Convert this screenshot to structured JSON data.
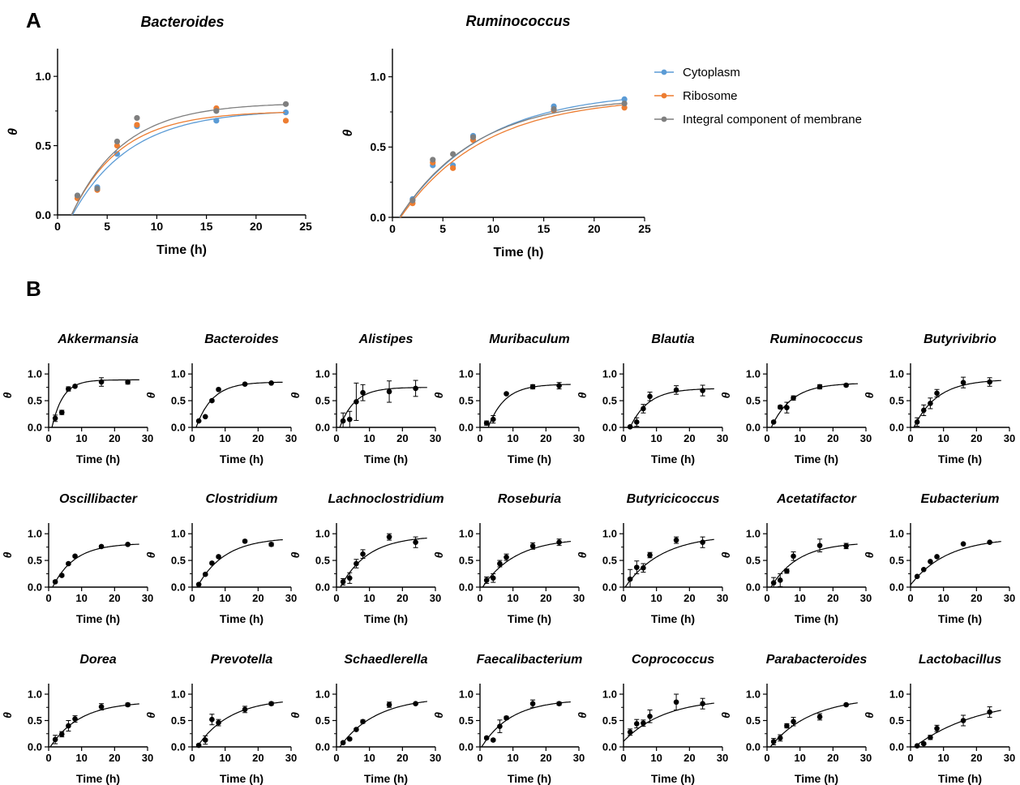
{
  "panel_labels": {
    "a": "A",
    "b": "B"
  },
  "colors": {
    "cytoplasm": "#5b9bd5",
    "ribosome": "#ed7d31",
    "membrane": "#7f7f7f",
    "black": "#000000"
  },
  "chart_data": [
    {
      "type": "scatter",
      "panel": "A",
      "title": "Bacteroides",
      "xlabel": "Time (h)",
      "ylabel": "θ",
      "xlim": [
        0,
        25
      ],
      "ylim": [
        0,
        1.2
      ],
      "xticks": [
        0,
        5,
        10,
        15,
        20,
        25
      ],
      "yticks": [
        0.0,
        0.5,
        1.0
      ],
      "fit_lines": true,
      "series": [
        {
          "name": "Cytoplasm",
          "color": "#5b9bd5",
          "x": [
            2,
            4,
            6,
            8,
            16,
            23
          ],
          "y": [
            0.14,
            0.2,
            0.44,
            0.64,
            0.68,
            0.74
          ],
          "fit": {
            "plateau": 0.76,
            "k": 0.17,
            "t0": 1.5
          }
        },
        {
          "name": "Ribosome",
          "color": "#ed7d31",
          "x": [
            2,
            4,
            6,
            8,
            16,
            23
          ],
          "y": [
            0.12,
            0.18,
            0.5,
            0.65,
            0.77,
            0.68
          ],
          "fit": {
            "plateau": 0.75,
            "k": 0.2,
            "t0": 1.4
          }
        },
        {
          "name": "Integral component of membrane",
          "color": "#7f7f7f",
          "x": [
            2,
            4,
            6,
            8,
            16,
            23
          ],
          "y": [
            0.14,
            0.19,
            0.53,
            0.7,
            0.75,
            0.8
          ],
          "fit": {
            "plateau": 0.81,
            "k": 0.19,
            "t0": 1.4
          }
        }
      ]
    },
    {
      "type": "scatter",
      "panel": "A",
      "title": "Ruminococcus",
      "xlabel": "Time (h)",
      "ylabel": "θ",
      "xlim": [
        0,
        25
      ],
      "ylim": [
        0,
        1.2
      ],
      "xticks": [
        0,
        5,
        10,
        15,
        20,
        25
      ],
      "yticks": [
        0.0,
        0.5,
        1.0
      ],
      "fit_lines": true,
      "legend_position": "right",
      "series": [
        {
          "name": "Cytoplasm",
          "color": "#5b9bd5",
          "x": [
            2,
            4,
            6,
            8,
            16,
            23
          ],
          "y": [
            0.13,
            0.37,
            0.37,
            0.58,
            0.79,
            0.84
          ],
          "fit": {
            "plateau": 0.9,
            "k": 0.12,
            "t0": 0.7
          }
        },
        {
          "name": "Ribosome",
          "color": "#ed7d31",
          "x": [
            2,
            4,
            6,
            8,
            16,
            23
          ],
          "y": [
            0.1,
            0.39,
            0.35,
            0.55,
            0.76,
            0.78
          ],
          "fit": {
            "plateau": 0.86,
            "k": 0.12,
            "t0": 0.8
          }
        },
        {
          "name": "Integral component of membrane",
          "color": "#7f7f7f",
          "x": [
            2,
            4,
            6,
            8,
            16,
            23
          ],
          "y": [
            0.12,
            0.41,
            0.45,
            0.57,
            0.77,
            0.81
          ],
          "fit": {
            "plateau": 0.86,
            "k": 0.13,
            "t0": 0.7
          }
        }
      ]
    },
    {
      "type": "scatter",
      "panel": "B",
      "title": "Akkermansia",
      "xlabel": "Time (h)",
      "ylabel": "θ",
      "xlim": [
        0,
        30
      ],
      "ylim": [
        0,
        1.2
      ],
      "xticks": [
        0,
        10,
        20,
        30
      ],
      "yticks": [
        0.0,
        0.5,
        1.0
      ],
      "x": [
        2,
        4,
        6,
        8,
        16,
        24
      ],
      "y": [
        0.17,
        0.28,
        0.72,
        0.77,
        0.85,
        0.85
      ],
      "error": [
        0.06,
        0.04,
        0.04,
        0.02,
        0.08,
        0.04
      ],
      "fit": {
        "plateau": 0.89,
        "k": 0.3,
        "t0": 1.0
      }
    },
    {
      "type": "scatter",
      "panel": "B",
      "title": "Bacteroides",
      "xlabel": "Time (h)",
      "ylabel": "θ",
      "xlim": [
        0,
        30
      ],
      "ylim": [
        0,
        1.2
      ],
      "xticks": [
        0,
        10,
        20,
        30
      ],
      "yticks": [
        0.0,
        0.5,
        1.0
      ],
      "x": [
        2,
        4,
        6,
        8,
        16,
        24
      ],
      "y": [
        0.12,
        0.2,
        0.5,
        0.71,
        0.81,
        0.83
      ],
      "error": [
        0.01,
        0.01,
        0.02,
        0.02,
        0.02,
        0.01
      ],
      "fit": {
        "plateau": 0.85,
        "k": 0.2,
        "t0": 1.2
      }
    },
    {
      "type": "scatter",
      "panel": "B",
      "title": "Alistipes",
      "xlabel": "Time (h)",
      "ylabel": "θ",
      "xlim": [
        0,
        30
      ],
      "ylim": [
        0,
        1.2
      ],
      "xticks": [
        0,
        10,
        20,
        30
      ],
      "yticks": [
        0.0,
        0.5,
        1.0
      ],
      "x": [
        2,
        4,
        6,
        8,
        16,
        24
      ],
      "y": [
        0.12,
        0.15,
        0.48,
        0.65,
        0.67,
        0.73
      ],
      "error": [
        0.15,
        0.15,
        0.35,
        0.15,
        0.2,
        0.15
      ],
      "fit": {
        "plateau": 0.75,
        "k": 0.22,
        "t0": 1.0
      }
    },
    {
      "type": "scatter",
      "panel": "B",
      "title": "Muribaculum",
      "xlabel": "Time (h)",
      "ylabel": "θ",
      "xlim": [
        0,
        30
      ],
      "ylim": [
        0,
        1.2
      ],
      "xticks": [
        0,
        10,
        20,
        30
      ],
      "yticks": [
        0.0,
        0.5,
        1.0
      ],
      "x": [
        2,
        4,
        8,
        16,
        24
      ],
      "y": [
        0.08,
        0.15,
        0.63,
        0.76,
        0.78
      ],
      "error": [
        0.04,
        0.07,
        0.02,
        0.04,
        0.06
      ],
      "fit": {
        "plateau": 0.81,
        "k": 0.2,
        "t0": 2.5
      }
    },
    {
      "type": "scatter",
      "panel": "B",
      "title": "Blautia",
      "xlabel": "Time (h)",
      "ylabel": "θ",
      "xlim": [
        0,
        30
      ],
      "ylim": [
        0,
        1.2
      ],
      "xticks": [
        0,
        10,
        20,
        30
      ],
      "yticks": [
        0.0,
        0.5,
        1.0
      ],
      "x": [
        2,
        4,
        6,
        8,
        16,
        24
      ],
      "y": [
        0.01,
        0.1,
        0.35,
        0.58,
        0.7,
        0.69
      ],
      "error": [
        0.01,
        0.08,
        0.08,
        0.08,
        0.08,
        0.1
      ],
      "fit": {
        "plateau": 0.73,
        "k": 0.18,
        "t0": 2.0
      }
    },
    {
      "type": "scatter",
      "panel": "B",
      "title": "Ruminococcus",
      "xlabel": "Time (h)",
      "ylabel": "θ",
      "xlim": [
        0,
        30
      ],
      "ylim": [
        0,
        1.2
      ],
      "xticks": [
        0,
        10,
        20,
        30
      ],
      "yticks": [
        0.0,
        0.5,
        1.0
      ],
      "x": [
        2,
        4,
        6,
        8,
        16,
        24
      ],
      "y": [
        0.1,
        0.38,
        0.37,
        0.55,
        0.76,
        0.79
      ],
      "error": [
        0.02,
        0.03,
        0.1,
        0.04,
        0.04,
        0.02
      ],
      "fit": {
        "plateau": 0.83,
        "k": 0.16,
        "t0": 1.3
      }
    },
    {
      "type": "scatter",
      "panel": "B",
      "title": "Butyrivibrio",
      "xlabel": "Time (h)",
      "ylabel": "θ",
      "xlim": [
        0,
        30
      ],
      "ylim": [
        0,
        1.2
      ],
      "xticks": [
        0,
        10,
        20,
        30
      ],
      "yticks": [
        0.0,
        0.5,
        1.0
      ],
      "x": [
        2,
        4,
        6,
        8,
        16,
        24
      ],
      "y": [
        0.1,
        0.32,
        0.45,
        0.64,
        0.84,
        0.85
      ],
      "error": [
        0.08,
        0.1,
        0.1,
        0.07,
        0.1,
        0.08
      ],
      "fit": {
        "plateau": 0.9,
        "k": 0.14,
        "t0": 1.0
      }
    },
    {
      "type": "scatter",
      "panel": "B",
      "title": "Oscillibacter",
      "xlabel": "Time (h)",
      "ylabel": "θ",
      "xlim": [
        0,
        30
      ],
      "ylim": [
        0,
        1.2
      ],
      "xticks": [
        0,
        10,
        20,
        30
      ],
      "yticks": [
        0.0,
        0.5,
        1.0
      ],
      "x": [
        2,
        4,
        6,
        8,
        16,
        24
      ],
      "y": [
        0.1,
        0.22,
        0.44,
        0.58,
        0.76,
        0.8
      ],
      "error": [
        0.02,
        0.02,
        0.02,
        0.02,
        0.02,
        0.02
      ],
      "fit": {
        "plateau": 0.82,
        "k": 0.15,
        "t0": 1.2
      }
    },
    {
      "type": "scatter",
      "panel": "B",
      "title": "Clostridium",
      "xlabel": "Time (h)",
      "ylabel": "θ",
      "xlim": [
        0,
        30
      ],
      "ylim": [
        0,
        1.2
      ],
      "xticks": [
        0,
        10,
        20,
        30
      ],
      "yticks": [
        0.0,
        0.5,
        1.0
      ],
      "x": [
        2,
        4,
        6,
        8,
        16,
        24
      ],
      "y": [
        0.05,
        0.24,
        0.45,
        0.57,
        0.86,
        0.8
      ],
      "error": [
        0.01,
        0.02,
        0.02,
        0.02,
        0.02,
        0.03
      ],
      "fit": {
        "plateau": 0.93,
        "k": 0.12,
        "t0": 1.5
      }
    },
    {
      "type": "scatter",
      "panel": "B",
      "title": "Lachnoclostridium",
      "xlabel": "Time (h)",
      "ylabel": "θ",
      "xlim": [
        0,
        30
      ],
      "ylim": [
        0,
        1.2
      ],
      "xticks": [
        0,
        10,
        20,
        30
      ],
      "yticks": [
        0.0,
        0.5,
        1.0
      ],
      "x": [
        2,
        4,
        6,
        8,
        16,
        24
      ],
      "y": [
        0.1,
        0.17,
        0.44,
        0.62,
        0.94,
        0.84
      ],
      "error": [
        0.06,
        0.1,
        0.08,
        0.08,
        0.06,
        0.1
      ],
      "fit": {
        "plateau": 0.96,
        "k": 0.12,
        "t0": 1.2
      }
    },
    {
      "type": "scatter",
      "panel": "B",
      "title": "Roseburia",
      "xlabel": "Time (h)",
      "ylabel": "θ",
      "xlim": [
        0,
        30
      ],
      "ylim": [
        0,
        1.2
      ],
      "xticks": [
        0,
        10,
        20,
        30
      ],
      "yticks": [
        0.0,
        0.5,
        1.0
      ],
      "x": [
        2,
        4,
        6,
        8,
        16,
        24
      ],
      "y": [
        0.13,
        0.17,
        0.44,
        0.56,
        0.77,
        0.84
      ],
      "error": [
        0.06,
        0.08,
        0.06,
        0.06,
        0.06,
        0.06
      ],
      "fit": {
        "plateau": 0.92,
        "k": 0.1,
        "t0": 0.8
      }
    },
    {
      "type": "scatter",
      "panel": "B",
      "title": "Butyricicoccus",
      "xlabel": "Time (h)",
      "ylabel": "θ",
      "xlim": [
        0,
        30
      ],
      "ylim": [
        0,
        1.2
      ],
      "xticks": [
        0,
        10,
        20,
        30
      ],
      "yticks": [
        0.0,
        0.5,
        1.0
      ],
      "x": [
        2,
        4,
        6,
        8,
        16,
        24
      ],
      "y": [
        0.15,
        0.37,
        0.36,
        0.6,
        0.88,
        0.84
      ],
      "error": [
        0.18,
        0.12,
        0.08,
        0.05,
        0.06,
        0.1
      ],
      "fit": {
        "plateau": 0.98,
        "k": 0.09,
        "t0": 0.5
      }
    },
    {
      "type": "scatter",
      "panel": "B",
      "title": "Acetatifactor",
      "xlabel": "Time (h)",
      "ylabel": "θ",
      "xlim": [
        0,
        30
      ],
      "ylim": [
        0,
        1.2
      ],
      "xticks": [
        0,
        10,
        20,
        30
      ],
      "yticks": [
        0.0,
        0.5,
        1.0
      ],
      "x": [
        2,
        4,
        6,
        8,
        16,
        24
      ],
      "y": [
        0.08,
        0.13,
        0.3,
        0.58,
        0.78,
        0.77
      ],
      "error": [
        0.1,
        0.12,
        0.04,
        0.08,
        0.12,
        0.05
      ],
      "fit": {
        "plateau": 0.84,
        "k": 0.12,
        "t0": 1.2
      }
    },
    {
      "type": "scatter",
      "panel": "B",
      "title": "Eubacterium",
      "xlabel": "Time (h)",
      "ylabel": "θ",
      "xlim": [
        0,
        30
      ],
      "ylim": [
        0,
        1.2
      ],
      "xticks": [
        0,
        10,
        20,
        30
      ],
      "yticks": [
        0.0,
        0.5,
        1.0
      ],
      "x": [
        2,
        4,
        6,
        8,
        16,
        24
      ],
      "y": [
        0.2,
        0.33,
        0.48,
        0.57,
        0.81,
        0.84
      ],
      "error": [
        0.01,
        0.01,
        0.01,
        0.01,
        0.01,
        0.01
      ],
      "fit": {
        "plateau": 0.93,
        "k": 0.09,
        "t0": -0.5
      }
    },
    {
      "type": "scatter",
      "panel": "B",
      "title": "Dorea",
      "xlabel": "Time (h)",
      "ylabel": "θ",
      "xlim": [
        0,
        30
      ],
      "ylim": [
        0,
        1.2
      ],
      "xticks": [
        0,
        10,
        20,
        30
      ],
      "yticks": [
        0.0,
        0.5,
        1.0
      ],
      "x": [
        2,
        4,
        6,
        8,
        16,
        24
      ],
      "y": [
        0.14,
        0.24,
        0.4,
        0.53,
        0.76,
        0.8
      ],
      "error": [
        0.08,
        0.05,
        0.1,
        0.06,
        0.06,
        0.03
      ],
      "fit": {
        "plateau": 0.86,
        "k": 0.11,
        "t0": 0.5
      }
    },
    {
      "type": "scatter",
      "panel": "B",
      "title": "Prevotella",
      "xlabel": "Time (h)",
      "ylabel": "θ",
      "xlim": [
        0,
        30
      ],
      "ylim": [
        0,
        1.2
      ],
      "xticks": [
        0,
        10,
        20,
        30
      ],
      "yticks": [
        0.0,
        0.5,
        1.0
      ],
      "x": [
        2,
        4,
        6,
        8,
        16,
        24
      ],
      "y": [
        0.03,
        0.13,
        0.52,
        0.46,
        0.71,
        0.82
      ],
      "error": [
        0.02,
        0.08,
        0.1,
        0.06,
        0.06,
        0.03
      ],
      "fit": {
        "plateau": 0.92,
        "k": 0.1,
        "t0": 1.5
      }
    },
    {
      "type": "scatter",
      "panel": "B",
      "title": "Schaedlerella",
      "xlabel": "Time (h)",
      "ylabel": "θ",
      "xlim": [
        0,
        30
      ],
      "ylim": [
        0,
        1.2
      ],
      "xticks": [
        0,
        10,
        20,
        30
      ],
      "yticks": [
        0.0,
        0.5,
        1.0
      ],
      "x": [
        2,
        4,
        6,
        8,
        16,
        24
      ],
      "y": [
        0.08,
        0.15,
        0.33,
        0.48,
        0.8,
        0.82
      ],
      "error": [
        0.02,
        0.02,
        0.02,
        0.03,
        0.05,
        0.02
      ],
      "fit": {
        "plateau": 0.95,
        "k": 0.09,
        "t0": 1.0
      }
    },
    {
      "type": "scatter",
      "panel": "B",
      "title": "Faecalibacterium",
      "xlabel": "Time (h)",
      "ylabel": "θ",
      "xlim": [
        0,
        30
      ],
      "ylim": [
        0,
        1.2
      ],
      "xticks": [
        0,
        10,
        20,
        30
      ],
      "yticks": [
        0.0,
        0.5,
        1.0
      ],
      "x": [
        2,
        4,
        6,
        8,
        16,
        24
      ],
      "y": [
        0.17,
        0.13,
        0.39,
        0.55,
        0.82,
        0.82
      ],
      "error": [
        0.02,
        0.02,
        0.12,
        0.03,
        0.07,
        0.03
      ],
      "fit": {
        "plateau": 0.9,
        "k": 0.11,
        "t0": 0.5
      }
    },
    {
      "type": "scatter",
      "panel": "B",
      "title": "Coprococcus",
      "xlabel": "Time (h)",
      "ylabel": "θ",
      "xlim": [
        0,
        30
      ],
      "ylim": [
        0,
        1.2
      ],
      "xticks": [
        0,
        10,
        20,
        30
      ],
      "yticks": [
        0.0,
        0.5,
        1.0
      ],
      "x": [
        2,
        4,
        6,
        8,
        16,
        24
      ],
      "y": [
        0.28,
        0.44,
        0.45,
        0.58,
        0.85,
        0.82
      ],
      "error": [
        0.06,
        0.08,
        0.06,
        0.12,
        0.15,
        0.1
      ],
      "fit": {
        "plateau": 0.92,
        "k": 0.08,
        "t0": -1.5
      }
    },
    {
      "type": "scatter",
      "panel": "B",
      "title": "Parabacteroides",
      "xlabel": "Time (h)",
      "ylabel": "θ",
      "xlim": [
        0,
        30
      ],
      "ylim": [
        0,
        1.2
      ],
      "xticks": [
        0,
        10,
        20,
        30
      ],
      "yticks": [
        0.0,
        0.5,
        1.0
      ],
      "x": [
        2,
        4,
        6,
        8,
        16,
        24
      ],
      "y": [
        0.1,
        0.17,
        0.4,
        0.48,
        0.57,
        0.8
      ],
      "error": [
        0.06,
        0.06,
        0.04,
        0.08,
        0.06,
        0.02
      ],
      "fit": {
        "plateau": 0.95,
        "k": 0.08,
        "t0": 1.0
      }
    },
    {
      "type": "scatter",
      "panel": "B",
      "title": "Lactobacillus",
      "xlabel": "Time (h)",
      "ylabel": "θ",
      "xlim": [
        0,
        30
      ],
      "ylim": [
        0,
        1.2
      ],
      "xticks": [
        0,
        10,
        20,
        30
      ],
      "yticks": [
        0.0,
        0.5,
        1.0
      ],
      "x": [
        2,
        4,
        6,
        8,
        16,
        24
      ],
      "y": [
        0.02,
        0.06,
        0.18,
        0.35,
        0.5,
        0.66
      ],
      "error": [
        0.01,
        0.02,
        0.04,
        0.06,
        0.1,
        0.1
      ],
      "fit": {
        "plateau": 0.95,
        "k": 0.05,
        "t0": 1.2
      }
    }
  ]
}
